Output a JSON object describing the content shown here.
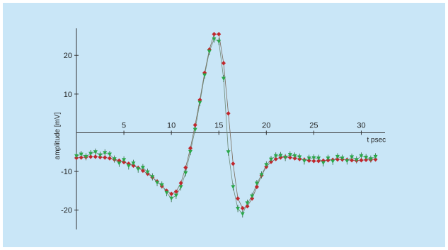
{
  "colors": {
    "background": "#c9e6f7",
    "series_red": "#c0272d",
    "series_green": "#2aa84a",
    "axis": "#333333"
  },
  "chart_data": {
    "type": "scatter",
    "title": "",
    "xlabel": "t  psec",
    "ylabel": "amplitude [mV]",
    "xlim": [
      0,
      32.5
    ],
    "ylim": [
      -25,
      27
    ],
    "x_ticks": [
      5,
      10,
      15,
      20,
      25,
      30
    ],
    "y_ticks": [
      20,
      10,
      -10,
      -20
    ],
    "x_tick_labels": [
      "5",
      "10",
      "15",
      "20",
      "25",
      "30"
    ],
    "y_tick_labels": [
      "20",
      "10",
      "-10",
      "-20"
    ],
    "grid": false,
    "legend": "none",
    "series": [
      {
        "marker": "diamond",
        "color": "#c0272d",
        "x": [
          0.0,
          0.5,
          1.0,
          1.5,
          2.0,
          2.5,
          3.0,
          3.5,
          4.0,
          4.5,
          5.0,
          5.5,
          6.0,
          6.5,
          7.0,
          7.5,
          8.0,
          8.5,
          9.0,
          9.5,
          10.0,
          10.5,
          11.0,
          11.5,
          12.0,
          12.5,
          13.0,
          13.5,
          14.0,
          14.5,
          15.0,
          15.5,
          16.0,
          16.5,
          17.0,
          17.5,
          18.0,
          18.5,
          19.0,
          19.5,
          20.0,
          20.5,
          21.0,
          21.5,
          22.0,
          22.5,
          23.0,
          23.5,
          24.0,
          24.5,
          25.0,
          25.5,
          26.0,
          26.5,
          27.0,
          27.5,
          28.0,
          28.5,
          29.0,
          29.5,
          30.0,
          30.5,
          31.0,
          31.5
        ],
        "y": [
          -6.5,
          -6.4,
          -6.3,
          -6.2,
          -6.2,
          -6.3,
          -6.4,
          -6.6,
          -6.9,
          -7.2,
          -7.6,
          -8.0,
          -8.5,
          -9.1,
          -9.8,
          -10.6,
          -11.5,
          -12.6,
          -13.8,
          -15.0,
          -15.8,
          -15.2,
          -13.0,
          -9.0,
          -4.0,
          2.0,
          8.5,
          15.5,
          21.5,
          25.5,
          25.5,
          18.0,
          5.0,
          -8.0,
          -17.0,
          -19.5,
          -19.0,
          -17.0,
          -14.0,
          -11.0,
          -8.8,
          -7.5,
          -6.8,
          -6.4,
          -6.3,
          -6.4,
          -6.6,
          -6.8,
          -7.0,
          -7.2,
          -7.3,
          -7.3,
          -7.2,
          -7.1,
          -7.0,
          -6.9,
          -6.9,
          -7.0,
          -7.1,
          -7.2,
          -7.1,
          -7.0,
          -7.0,
          -6.9
        ]
      },
      {
        "marker": "triangle-down",
        "color": "#2aa84a",
        "x": [
          0.0,
          0.5,
          1.0,
          1.5,
          2.0,
          2.5,
          3.0,
          3.5,
          4.0,
          4.5,
          5.0,
          5.5,
          6.0,
          6.5,
          7.0,
          7.5,
          8.0,
          8.5,
          9.0,
          9.5,
          10.0,
          10.5,
          11.0,
          11.5,
          12.0,
          12.5,
          13.0,
          13.5,
          14.0,
          14.5,
          15.0,
          15.5,
          16.0,
          16.5,
          17.0,
          17.5,
          18.0,
          18.5,
          19.0,
          19.5,
          20.0,
          20.5,
          21.0,
          21.5,
          22.0,
          22.5,
          23.0,
          23.5,
          24.0,
          24.5,
          25.0,
          25.5,
          26.0,
          26.5,
          27.0,
          27.5,
          28.0,
          28.5,
          29.0,
          29.5,
          30.0,
          30.5,
          31.0,
          31.5
        ],
        "y": [
          -6.0,
          -5.6,
          -6.2,
          -5.4,
          -5.0,
          -5.8,
          -5.2,
          -5.6,
          -6.8,
          -7.9,
          -7.0,
          -8.6,
          -7.9,
          -9.4,
          -9.0,
          -10.2,
          -11.4,
          -12.9,
          -13.5,
          -15.5,
          -17.0,
          -16.2,
          -14.0,
          -10.4,
          -4.9,
          0.8,
          7.8,
          14.9,
          21.0,
          24.2,
          23.6,
          14.0,
          -5.0,
          -14.0,
          -19.6,
          -21.0,
          -18.2,
          -16.4,
          -13.1,
          -10.9,
          -8.3,
          -6.9,
          -6.0,
          -5.9,
          -6.4,
          -5.7,
          -6.0,
          -6.3,
          -7.3,
          -6.6,
          -6.5,
          -6.6,
          -7.8,
          -6.6,
          -7.4,
          -6.2,
          -6.6,
          -7.3,
          -6.3,
          -7.0,
          -6.0,
          -6.4,
          -6.8,
          -6.2
        ]
      }
    ]
  }
}
